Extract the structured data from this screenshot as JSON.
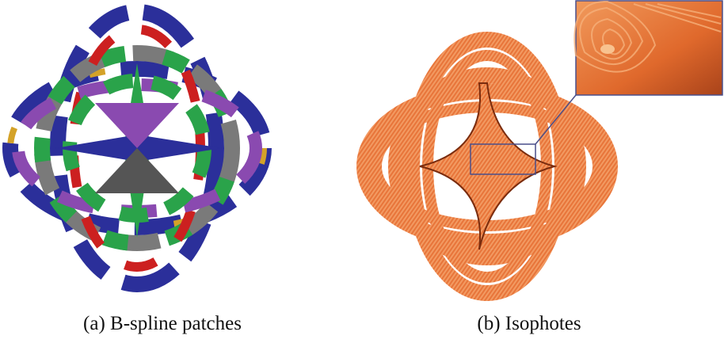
{
  "figure": {
    "panels": [
      {
        "caption": "(a) B-spline patches"
      },
      {
        "caption": "(b) Isophotes"
      }
    ]
  }
}
